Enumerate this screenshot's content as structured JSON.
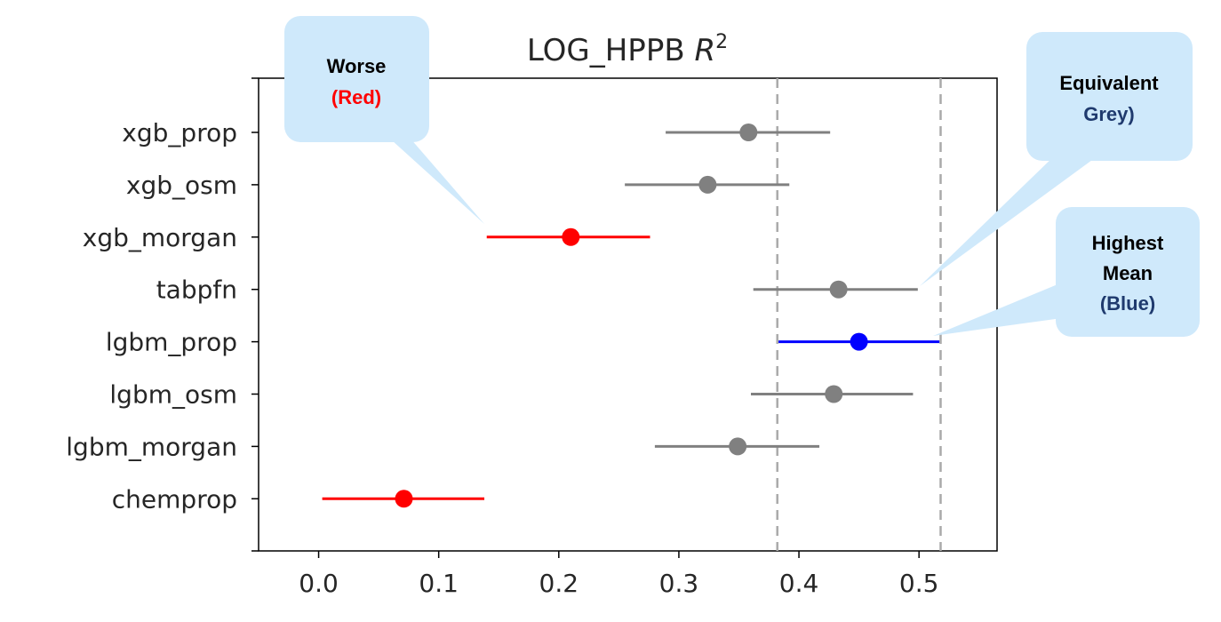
{
  "chart_data": {
    "type": "scatter",
    "title_main": "LOG_HPPB ",
    "title_math": "R",
    "title_sup": "2",
    "xlim": [
      -0.05,
      0.565
    ],
    "x_ticks": [
      "0.0",
      "0.1",
      "0.2",
      "0.3",
      "0.4",
      "0.5"
    ],
    "x_tick_values": [
      0.0,
      0.1,
      0.2,
      0.3,
      0.4,
      0.5
    ],
    "grid": false,
    "reference_lines": [
      0.382,
      0.518
    ],
    "points": [
      {
        "label": "xgb_prop",
        "mean": 0.358,
        "low": 0.289,
        "high": 0.426,
        "color": "#808080"
      },
      {
        "label": "xgb_osm",
        "mean": 0.324,
        "low": 0.255,
        "high": 0.392,
        "color": "#808080"
      },
      {
        "label": "xgb_morgan",
        "mean": 0.21,
        "low": 0.14,
        "high": 0.276,
        "color": "#ff0000"
      },
      {
        "label": "tabpfn",
        "mean": 0.433,
        "low": 0.362,
        "high": 0.499,
        "color": "#808080"
      },
      {
        "label": "lgbm_prop",
        "mean": 0.45,
        "low": 0.383,
        "high": 0.517,
        "color": "#0000ff"
      },
      {
        "label": "lgbm_osm",
        "mean": 0.429,
        "low": 0.36,
        "high": 0.495,
        "color": "#808080"
      },
      {
        "label": "lgbm_morgan",
        "mean": 0.349,
        "low": 0.28,
        "high": 0.417,
        "color": "#808080"
      },
      {
        "label": "chemprop",
        "mean": 0.071,
        "low": 0.003,
        "high": 0.138,
        "color": "#ff0000"
      }
    ]
  },
  "callouts": {
    "worse": {
      "line1": "Worse",
      "line2": "(Red)",
      "line2_color": "#ff0000"
    },
    "equivalent": {
      "line1": "Equivalent",
      "line2": "Grey)",
      "line2_color": "#1f3a6e"
    },
    "highest": {
      "line1": "Highest",
      "line2": "Mean",
      "line3": "(Blue)",
      "line3_color": "#1f3a6e"
    }
  },
  "colors": {
    "callout_fill": "#cfe9fb",
    "axis": "#000000",
    "refline": "#aaaaaa"
  }
}
